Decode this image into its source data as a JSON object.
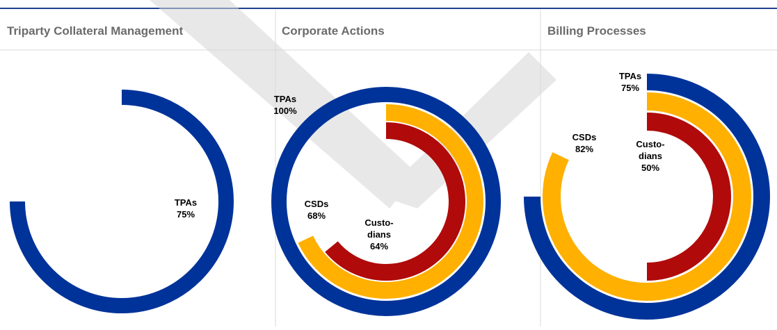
{
  "chart_data": [
    {
      "type": "radial_bar",
      "title": "Triparty Collateral Management",
      "categories": [
        "TPAs"
      ],
      "values": [
        75
      ],
      "value_labels": [
        "75%"
      ],
      "colors": [
        "#003399"
      ]
    },
    {
      "type": "radial_bar",
      "title": "Corporate Actions",
      "categories": [
        "TPAs",
        "CSDs",
        "Custo-dians"
      ],
      "values": [
        100,
        68,
        64
      ],
      "value_labels": [
        "100%",
        "68%",
        "64%"
      ],
      "colors": [
        "#003399",
        "#ffb000",
        "#b00a0a"
      ]
    },
    {
      "type": "radial_bar",
      "title": "Billing Processes",
      "categories": [
        "TPAs",
        "CSDs",
        "Custo-dians"
      ],
      "values": [
        75,
        82,
        50
      ],
      "value_labels": [
        "75%",
        "82%",
        "50%"
      ],
      "colors": [
        "#003399",
        "#ffb000",
        "#b00a0a"
      ]
    }
  ]
}
